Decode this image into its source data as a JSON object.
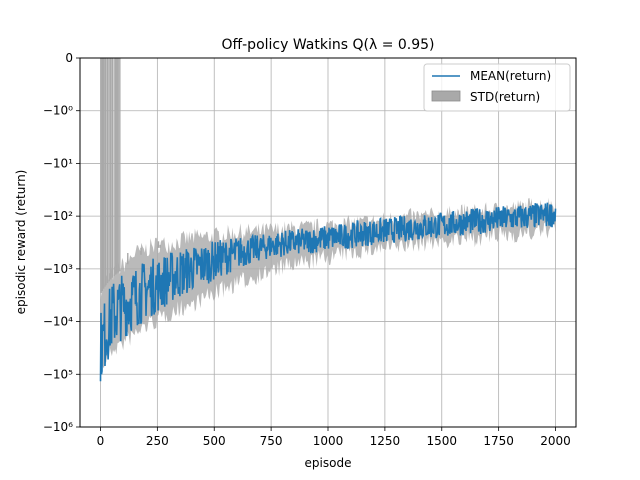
{
  "chart_data": {
    "type": "line",
    "title": "Off-policy Watkins Q(λ = 0.95)",
    "xlabel": "episode",
    "ylabel": "episodic reward (return)",
    "x_ticks": [
      "0",
      "250",
      "500",
      "750",
      "1000",
      "1250",
      "1500",
      "1750",
      "2000"
    ],
    "x_tick_values": [
      0,
      250,
      500,
      750,
      1000,
      1250,
      1500,
      1750,
      2000
    ],
    "y_ticks": [
      "0",
      "−10⁰",
      "−10¹",
      "−10²",
      "−10³",
      "−10⁴",
      "−10⁵",
      "−10⁶"
    ],
    "y_tick_values": [
      0,
      -1,
      -10,
      -100,
      -1000,
      -10000,
      -100000,
      -1000000
    ],
    "yscale": "symlog",
    "xlim": [
      -90,
      2090
    ],
    "ylim": [
      -1000000,
      0
    ],
    "grid": true,
    "legend_position": "top-right",
    "colors": {
      "mean": "#1f77b4",
      "std": "#a9a9a9"
    },
    "series": [
      {
        "name": "MEAN(return)",
        "kind": "line",
        "x": [
          0,
          25,
          50,
          75,
          100,
          150,
          200,
          250,
          300,
          400,
          500,
          600,
          700,
          800,
          900,
          1000,
          1100,
          1200,
          1300,
          1400,
          1500,
          1600,
          1700,
          1800,
          1900,
          2000
        ],
        "y": [
          -30000,
          -15000,
          -8000,
          -6000,
          -5000,
          -3500,
          -2500,
          -2000,
          -1500,
          -1000,
          -700,
          -500,
          -400,
          -330,
          -300,
          -260,
          -230,
          -200,
          -180,
          -160,
          -150,
          -130,
          -120,
          -110,
          -100,
          -90
        ]
      },
      {
        "name": "STD(return)",
        "kind": "band",
        "x": [
          0,
          25,
          50,
          75,
          100,
          150,
          200,
          250,
          300,
          400,
          500,
          600,
          700,
          800,
          900,
          1000,
          1100,
          1200,
          1300,
          1400,
          1500,
          1600,
          1700,
          1800,
          1900,
          2000
        ],
        "upper": [
          -3000,
          -2000,
          -1500,
          -1200,
          -1000,
          -600,
          -500,
          -400,
          -400,
          -300,
          -280,
          -240,
          -230,
          -210,
          -200,
          -180,
          -165,
          -150,
          -130,
          -120,
          -115,
          -100,
          -95,
          -85,
          -75,
          -70
        ],
        "lower": [
          -70000,
          -45000,
          -30000,
          -25000,
          -22000,
          -15000,
          -10000,
          -8000,
          -6000,
          -4000,
          -2500,
          -1600,
          -1100,
          -800,
          -650,
          -500,
          -420,
          -350,
          -320,
          -280,
          -250,
          -230,
          -210,
          -190,
          -170,
          -150
        ]
      }
    ],
    "spikes": {
      "x": [
        3,
        8,
        14,
        20,
        24,
        31,
        38,
        45,
        52,
        60,
        67,
        72,
        78,
        85,
        120,
        178,
        255,
        262
      ],
      "top": [
        0,
        0,
        0,
        0,
        0,
        0,
        0,
        0,
        0,
        0,
        0,
        0,
        0,
        0,
        -500,
        -400,
        -300,
        -350
      ]
    }
  }
}
